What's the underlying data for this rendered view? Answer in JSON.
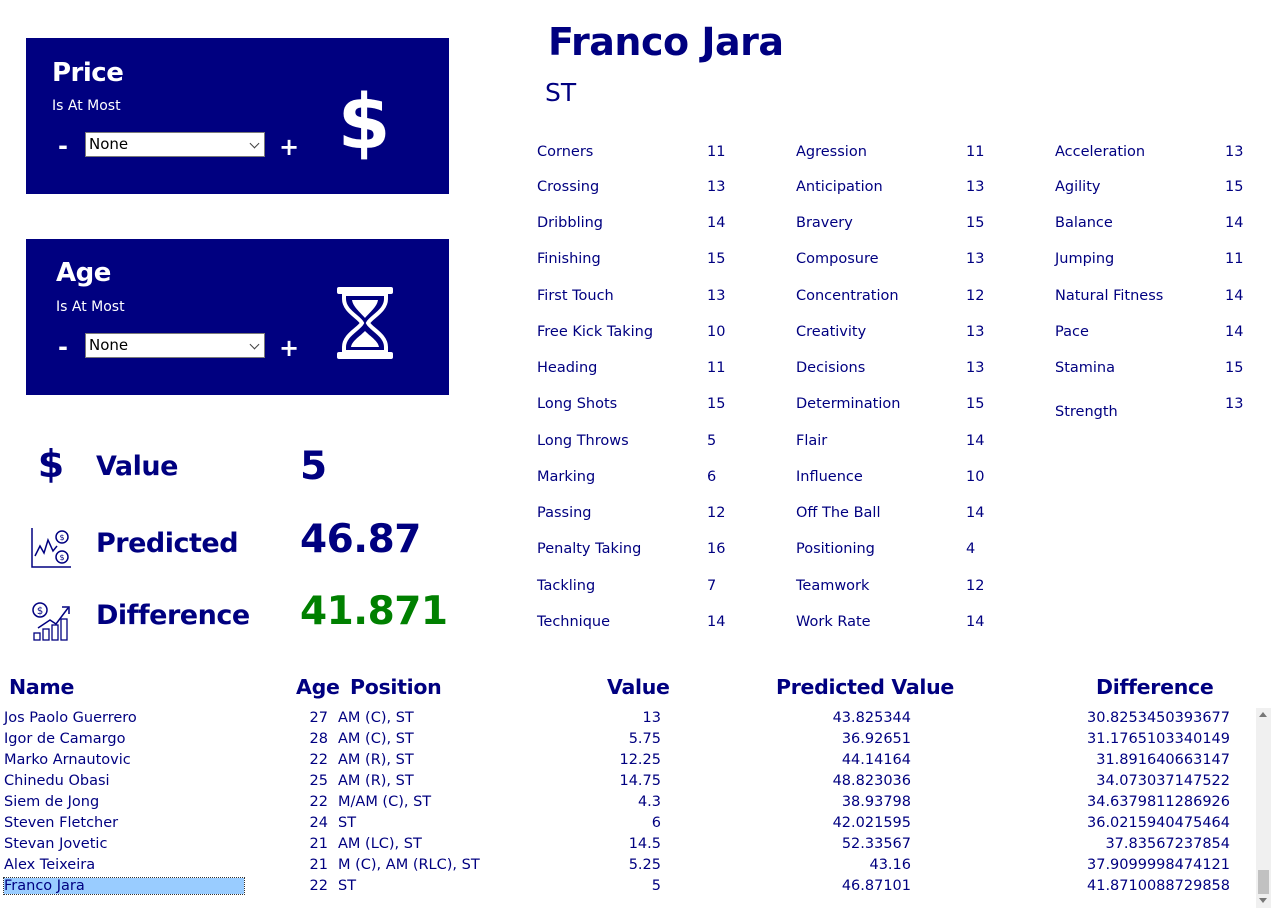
{
  "filters": {
    "price": {
      "title": "Price",
      "subtitle": "Is At Most",
      "minus": "-",
      "plus": "+",
      "value": "None",
      "icon": "dollar-icon"
    },
    "age": {
      "title": "Age",
      "subtitle": "Is At Most",
      "minus": "-",
      "plus": "+",
      "value": "None",
      "icon": "hourglass-icon"
    }
  },
  "metrics": {
    "value_label": "Value",
    "value": "5",
    "predicted_label": "Predicted",
    "predicted": "46.87",
    "difference_label": "Difference",
    "difference": "41.871",
    "difference_color": "#008000"
  },
  "player": {
    "name": "Franco Jara",
    "position": "ST"
  },
  "attributes": {
    "technical": [
      {
        "name": "Corners",
        "value": "11"
      },
      {
        "name": "Crossing",
        "value": "13"
      },
      {
        "name": "Dribbling",
        "value": "14"
      },
      {
        "name": "Finishing",
        "value": "15"
      },
      {
        "name": "First Touch",
        "value": "13"
      },
      {
        "name": "Free Kick Taking",
        "value": "10"
      },
      {
        "name": "Heading",
        "value": "11"
      },
      {
        "name": "Long Shots",
        "value": "15"
      },
      {
        "name": "Long Throws",
        "value": "5"
      },
      {
        "name": "Marking",
        "value": "6"
      },
      {
        "name": "Passing",
        "value": "12"
      },
      {
        "name": "Penalty Taking",
        "value": "16"
      },
      {
        "name": "Tackling",
        "value": "7"
      },
      {
        "name": "Technique",
        "value": "14"
      }
    ],
    "mental": [
      {
        "name": "Agression",
        "value": "11"
      },
      {
        "name": "Anticipation",
        "value": "13"
      },
      {
        "name": "Bravery",
        "value": "15"
      },
      {
        "name": "Composure",
        "value": "13"
      },
      {
        "name": "Concentration",
        "value": "12"
      },
      {
        "name": "Creativity",
        "value": "13"
      },
      {
        "name": "Decisions",
        "value": "13"
      },
      {
        "name": "Determination",
        "value": "15"
      },
      {
        "name": "Flair",
        "value": "14"
      },
      {
        "name": "Influence",
        "value": "10"
      },
      {
        "name": "Off The Ball",
        "value": "14"
      },
      {
        "name": "Positioning",
        "value": "4"
      },
      {
        "name": "Teamwork",
        "value": "12"
      },
      {
        "name": "Work Rate",
        "value": "14"
      }
    ],
    "physical": [
      {
        "name": "Acceleration",
        "value": "13"
      },
      {
        "name": "Agility",
        "value": "15"
      },
      {
        "name": "Balance",
        "value": "14"
      },
      {
        "name": "Jumping",
        "value": "11"
      },
      {
        "name": "Natural Fitness",
        "value": "14"
      },
      {
        "name": "Pace",
        "value": "14"
      },
      {
        "name": "Stamina",
        "value": "15"
      },
      {
        "name": "Strength",
        "value": "13"
      }
    ]
  },
  "table": {
    "headers": {
      "name": "Name",
      "age": "Age",
      "position": "Position",
      "value": "Value",
      "predicted": "Predicted Value",
      "difference": "Difference"
    },
    "rows": [
      {
        "name": "Jos Paolo Guerrero",
        "age": "27",
        "position": "AM (C), ST",
        "value": "13",
        "predicted": "43.825344",
        "difference": "30.8253450393677"
      },
      {
        "name": "Igor de Camargo",
        "age": "28",
        "position": "AM (C), ST",
        "value": "5.75",
        "predicted": "36.92651",
        "difference": "31.1765103340149"
      },
      {
        "name": "Marko Arnautovic",
        "age": "22",
        "position": "AM (R), ST",
        "value": "12.25",
        "predicted": "44.14164",
        "difference": "31.891640663147"
      },
      {
        "name": "Chinedu Obasi",
        "age": "25",
        "position": "AM (R), ST",
        "value": "14.75",
        "predicted": "48.823036",
        "difference": "34.073037147522"
      },
      {
        "name": "Siem de Jong",
        "age": "22",
        "position": "M/AM (C), ST",
        "value": "4.3",
        "predicted": "38.93798",
        "difference": "34.6379811286926"
      },
      {
        "name": "Steven Fletcher",
        "age": "24",
        "position": "ST",
        "value": "6",
        "predicted": "42.021595",
        "difference": "36.0215940475464"
      },
      {
        "name": "Stevan Jovetic",
        "age": "21",
        "position": "AM (LC), ST",
        "value": "14.5",
        "predicted": "52.33567",
        "difference": "37.83567237854"
      },
      {
        "name": "Alex Teixeira",
        "age": "21",
        "position": "M (C), AM (RLC), ST",
        "value": "5.25",
        "predicted": "43.16",
        "difference": "37.9099998474121"
      },
      {
        "name": "Franco Jara",
        "age": "22",
        "position": "ST",
        "value": "5",
        "predicted": "46.87101",
        "difference": "41.8710088729858",
        "selected": true
      }
    ]
  }
}
